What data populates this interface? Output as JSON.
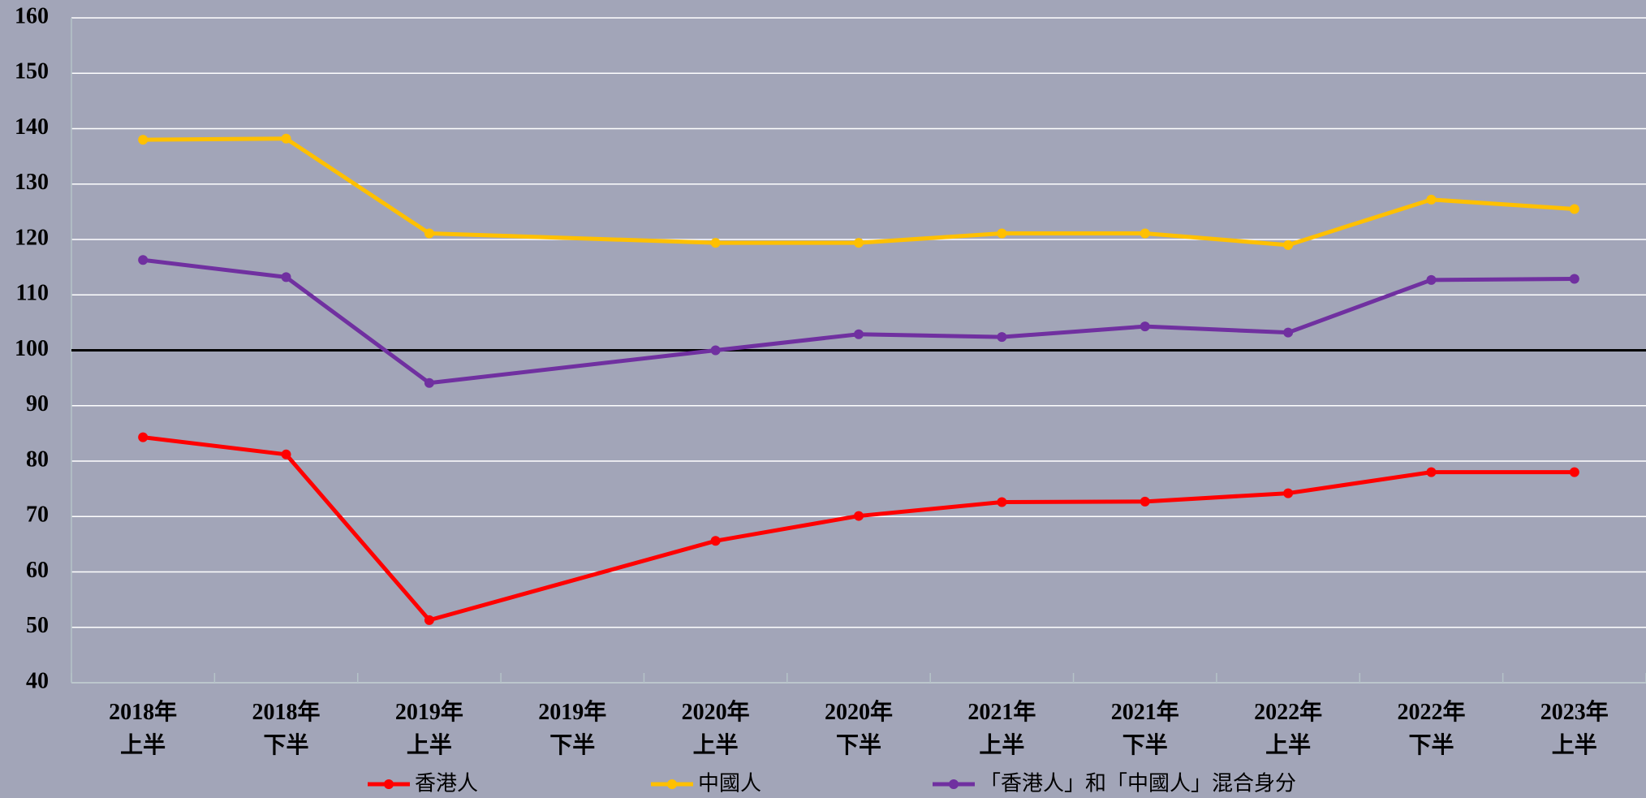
{
  "chart_data": {
    "type": "line",
    "categories": [
      "2018年\n上半",
      "2018年\n下半",
      "2019年\n上半",
      "2019年\n下半",
      "2020年\n上半",
      "2020年\n下半",
      "2021年\n上半",
      "2021年\n下半",
      "2022年\n上半",
      "2022年\n下半",
      "2023年\n上半"
    ],
    "series": [
      {
        "name": "香港人",
        "color": "#ff0000",
        "values": [
          84.3,
          81.2,
          51.3,
          null,
          65.6,
          70.1,
          72.6,
          72.7,
          74.2,
          78,
          78
        ]
      },
      {
        "name": "中國人",
        "color": "#ffc000",
        "values": [
          138,
          138.2,
          121.1,
          null,
          119.4,
          119.4,
          121.1,
          121.1,
          119,
          127.2,
          125.5
        ]
      },
      {
        "name": "「香港人」和「中國人」混合身分",
        "color": "#7030a0",
        "values": [
          116.3,
          113.2,
          94.1,
          null,
          100,
          102.9,
          102.4,
          104.3,
          103.2,
          112.7,
          112.9
        ]
      }
    ],
    "ylim": [
      40,
      160
    ],
    "yticks": [
      40,
      50,
      60,
      70,
      80,
      90,
      100,
      110,
      120,
      130,
      140,
      150,
      160
    ],
    "reference_line": 100,
    "grid": true,
    "legend": "bottom"
  }
}
